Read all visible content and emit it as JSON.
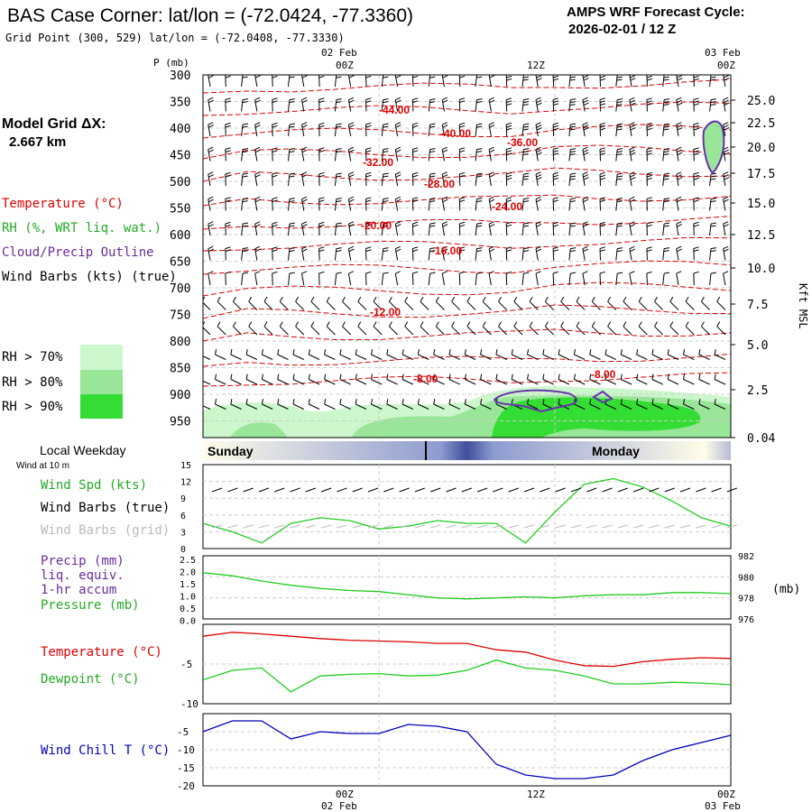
{
  "header": {
    "title": "BAS Case Corner:  lat/lon = (-72.0424, -77.3360)",
    "grid_point": "Grid Point (300, 529) lat/lon = (-72.0408, -77.3330)",
    "cycle_label": "AMPS WRF Forecast Cycle:",
    "cycle_value": "2026-02-01 / 12  Z",
    "model_grid_label": "Model Grid ΔX:",
    "model_grid_value": "2.667 km"
  },
  "legend": {
    "temperature": "Temperature (°C)",
    "rh": "RH (%, WRT liq. wat.)",
    "cloud": "Cloud/Precip Outline",
    "wind": "Wind Barbs (kts) (true)",
    "rh70": "RH > 70%",
    "rh80": "RH > 80%",
    "rh90": "RH > 90%"
  },
  "colors": {
    "temp": "#dd0000",
    "rh70": "#ccf7cc",
    "rh80": "#99e699",
    "rh90": "#33dd33",
    "cloud": "#6633aa",
    "green": "#22cc22",
    "purple": "#6a2c9a",
    "blue": "#0000bb",
    "grey": "#bbbbbb"
  },
  "time_axis": {
    "top_dates": [
      "02 Feb",
      "",
      "03 Feb"
    ],
    "top_hours": [
      "00Z",
      "12Z",
      "00Z"
    ],
    "bottom_hours": [
      "00Z",
      "12Z",
      "00Z"
    ],
    "bottom_dates": [
      "02 Feb",
      "",
      "03 Feb"
    ],
    "weekday_label": "Local Weekday",
    "wind10_label": "Wind at 10 m",
    "weekdays": [
      "Sunday",
      "Monday"
    ]
  },
  "chart_data": [
    {
      "type": "line",
      "name": "cross-section",
      "ylabel": "P (mb)",
      "y_ticks": [
        300,
        350,
        400,
        450,
        500,
        550,
        600,
        650,
        700,
        750,
        800,
        850,
        900,
        950
      ],
      "right_label": "Kft MSL",
      "right_ticks": [
        "25.0",
        "22.5",
        "20.0",
        "17.5",
        "15.0",
        "12.5",
        "10.0",
        "7.5",
        "5.0",
        "2.5",
        "0.04"
      ],
      "isotherm_labels": [
        "-44.00",
        "-40.00",
        "-36.00",
        "-32.00",
        "-28.00",
        "-24.00",
        "-20.00",
        "-16.00",
        "-12.00",
        "-8.00",
        "-8.00"
      ]
    },
    {
      "type": "line",
      "name": "wind",
      "labels": [
        "Wind Spd (kts)",
        "Wind Barbs (true)",
        "Wind Barbs (grid)"
      ],
      "y_ticks": [
        "15",
        "12",
        "9",
        "6",
        "3",
        "0"
      ],
      "ylim": [
        0,
        15
      ],
      "x_hours": [
        -12,
        -10,
        -8,
        -6,
        -4,
        -2,
        0,
        2,
        4,
        6,
        8,
        10,
        12,
        14,
        16,
        18,
        20,
        22,
        24
      ],
      "speed": [
        4.5,
        3.0,
        1.0,
        4.5,
        5.5,
        5.0,
        3.5,
        4.0,
        5.0,
        4.5,
        4.5,
        1.0,
        6.5,
        11.5,
        12.5,
        11.0,
        8.5,
        5.5,
        4.0
      ]
    },
    {
      "type": "line",
      "name": "precip-pressure",
      "labels": [
        "Precip (mm)",
        "liq. equiv.",
        "1-hr accum",
        "Pressure (mb)"
      ],
      "y_ticks": [
        "2.5",
        "2.0",
        "1.5",
        "1.0",
        "0.5",
        "0.0"
      ],
      "right_ticks": [
        "982",
        "980",
        "978",
        "976"
      ],
      "right_unit": "(mb)",
      "pressure_ylim": [
        976,
        982
      ],
      "pressure": [
        980.4,
        980.1,
        979.6,
        979.2,
        978.9,
        978.7,
        978.6,
        978.3,
        978.0,
        977.9,
        978.0,
        978.1,
        978.0,
        978.2,
        978.3,
        978.3,
        978.5,
        978.5,
        978.4
      ]
    },
    {
      "type": "line",
      "name": "temperature",
      "labels": [
        "Temperature (°C)",
        "Dewpoint (°C)"
      ],
      "y_ticks": [
        "-5",
        "-10"
      ],
      "ylim": [
        -10,
        0
      ],
      "temperature": [
        -1.5,
        -1.0,
        -1.2,
        -1.5,
        -1.8,
        -2.0,
        -2.1,
        -2.2,
        -2.4,
        -2.4,
        -3.2,
        -3.5,
        -4.5,
        -5.2,
        -5.3,
        -4.7,
        -4.4,
        -4.2,
        -4.3
      ],
      "dewpoint": [
        -7.0,
        -5.8,
        -5.5,
        -8.5,
        -6.5,
        -6.3,
        -6.2,
        -6.5,
        -6.4,
        -5.8,
        -4.5,
        -5.5,
        -5.8,
        -6.5,
        -7.5,
        -7.5,
        -7.3,
        -7.4,
        -7.6
      ]
    },
    {
      "type": "line",
      "name": "windchill",
      "labels": [
        "Wind Chill T (°C)"
      ],
      "y_ticks": [
        "-5",
        "-10",
        "-15",
        "-20"
      ],
      "ylim": [
        -20,
        0
      ],
      "windchill": [
        -5.0,
        -2.0,
        -2.0,
        -7.0,
        -5.0,
        -5.5,
        -5.5,
        -3.0,
        -3.5,
        -5.0,
        -14.0,
        -17.0,
        -18.0,
        -18.0,
        -17.0,
        -13.0,
        -10.0,
        -8.0,
        -6.0
      ]
    }
  ]
}
